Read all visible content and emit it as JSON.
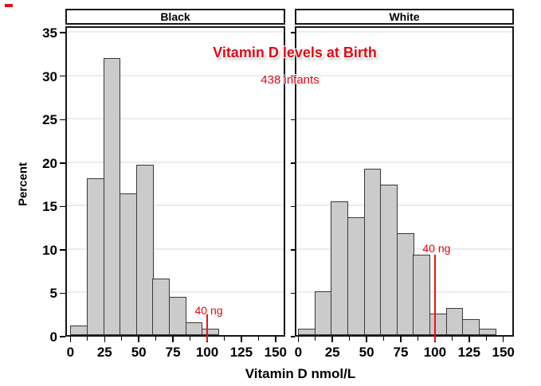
{
  "page": {
    "background": "#ffffff"
  },
  "styles": {
    "red_text": "#e30613",
    "red_line": "#ee1111",
    "bar_fill": "#cbcbcb",
    "bar_border": "#383838",
    "grid_color": "#ececec",
    "frame_color": "#161616",
    "text_color": "#000000"
  },
  "corner_mark": {
    "color": "#e30613"
  },
  "chart_data": {
    "type": "bar",
    "variant": "paneled-histogram",
    "title": "Vitamin D levels at Birth",
    "subtitle": "438 infants",
    "xlabel": "Vitamin D nmol/L",
    "ylabel": "Percent",
    "xlim": [
      0,
      150
    ],
    "ylim": [
      0,
      35
    ],
    "x_ticks": [
      0,
      25,
      50,
      75,
      100,
      125,
      150
    ],
    "x_minor_tick_step": 12.5,
    "y_ticks": [
      0,
      5,
      10,
      15,
      20,
      25,
      30,
      35
    ],
    "grid": "horizontal",
    "legend": "none",
    "bin_start": 0,
    "bin_width": 12,
    "reference_line": {
      "x": 100,
      "label": "40 ng"
    },
    "panels": [
      {
        "label": "Black",
        "bin_midpoints": [
          6,
          18,
          30,
          42,
          54,
          66,
          78,
          90,
          102
        ],
        "values_percent": [
          1.1,
          18.1,
          31.9,
          16.3,
          19.6,
          6.5,
          4.4,
          1.5,
          0.7
        ],
        "ref_line_height_pct": 2.4
      },
      {
        "label": "White",
        "bin_midpoints": [
          6,
          18,
          30,
          42,
          54,
          66,
          78,
          90,
          102,
          114,
          126,
          138
        ],
        "values_percent": [
          0.7,
          5.0,
          15.4,
          13.6,
          19.2,
          17.3,
          11.7,
          9.3,
          2.5,
          3.1,
          1.8,
          0.7
        ],
        "ref_line_height_pct": 9.3
      }
    ]
  }
}
